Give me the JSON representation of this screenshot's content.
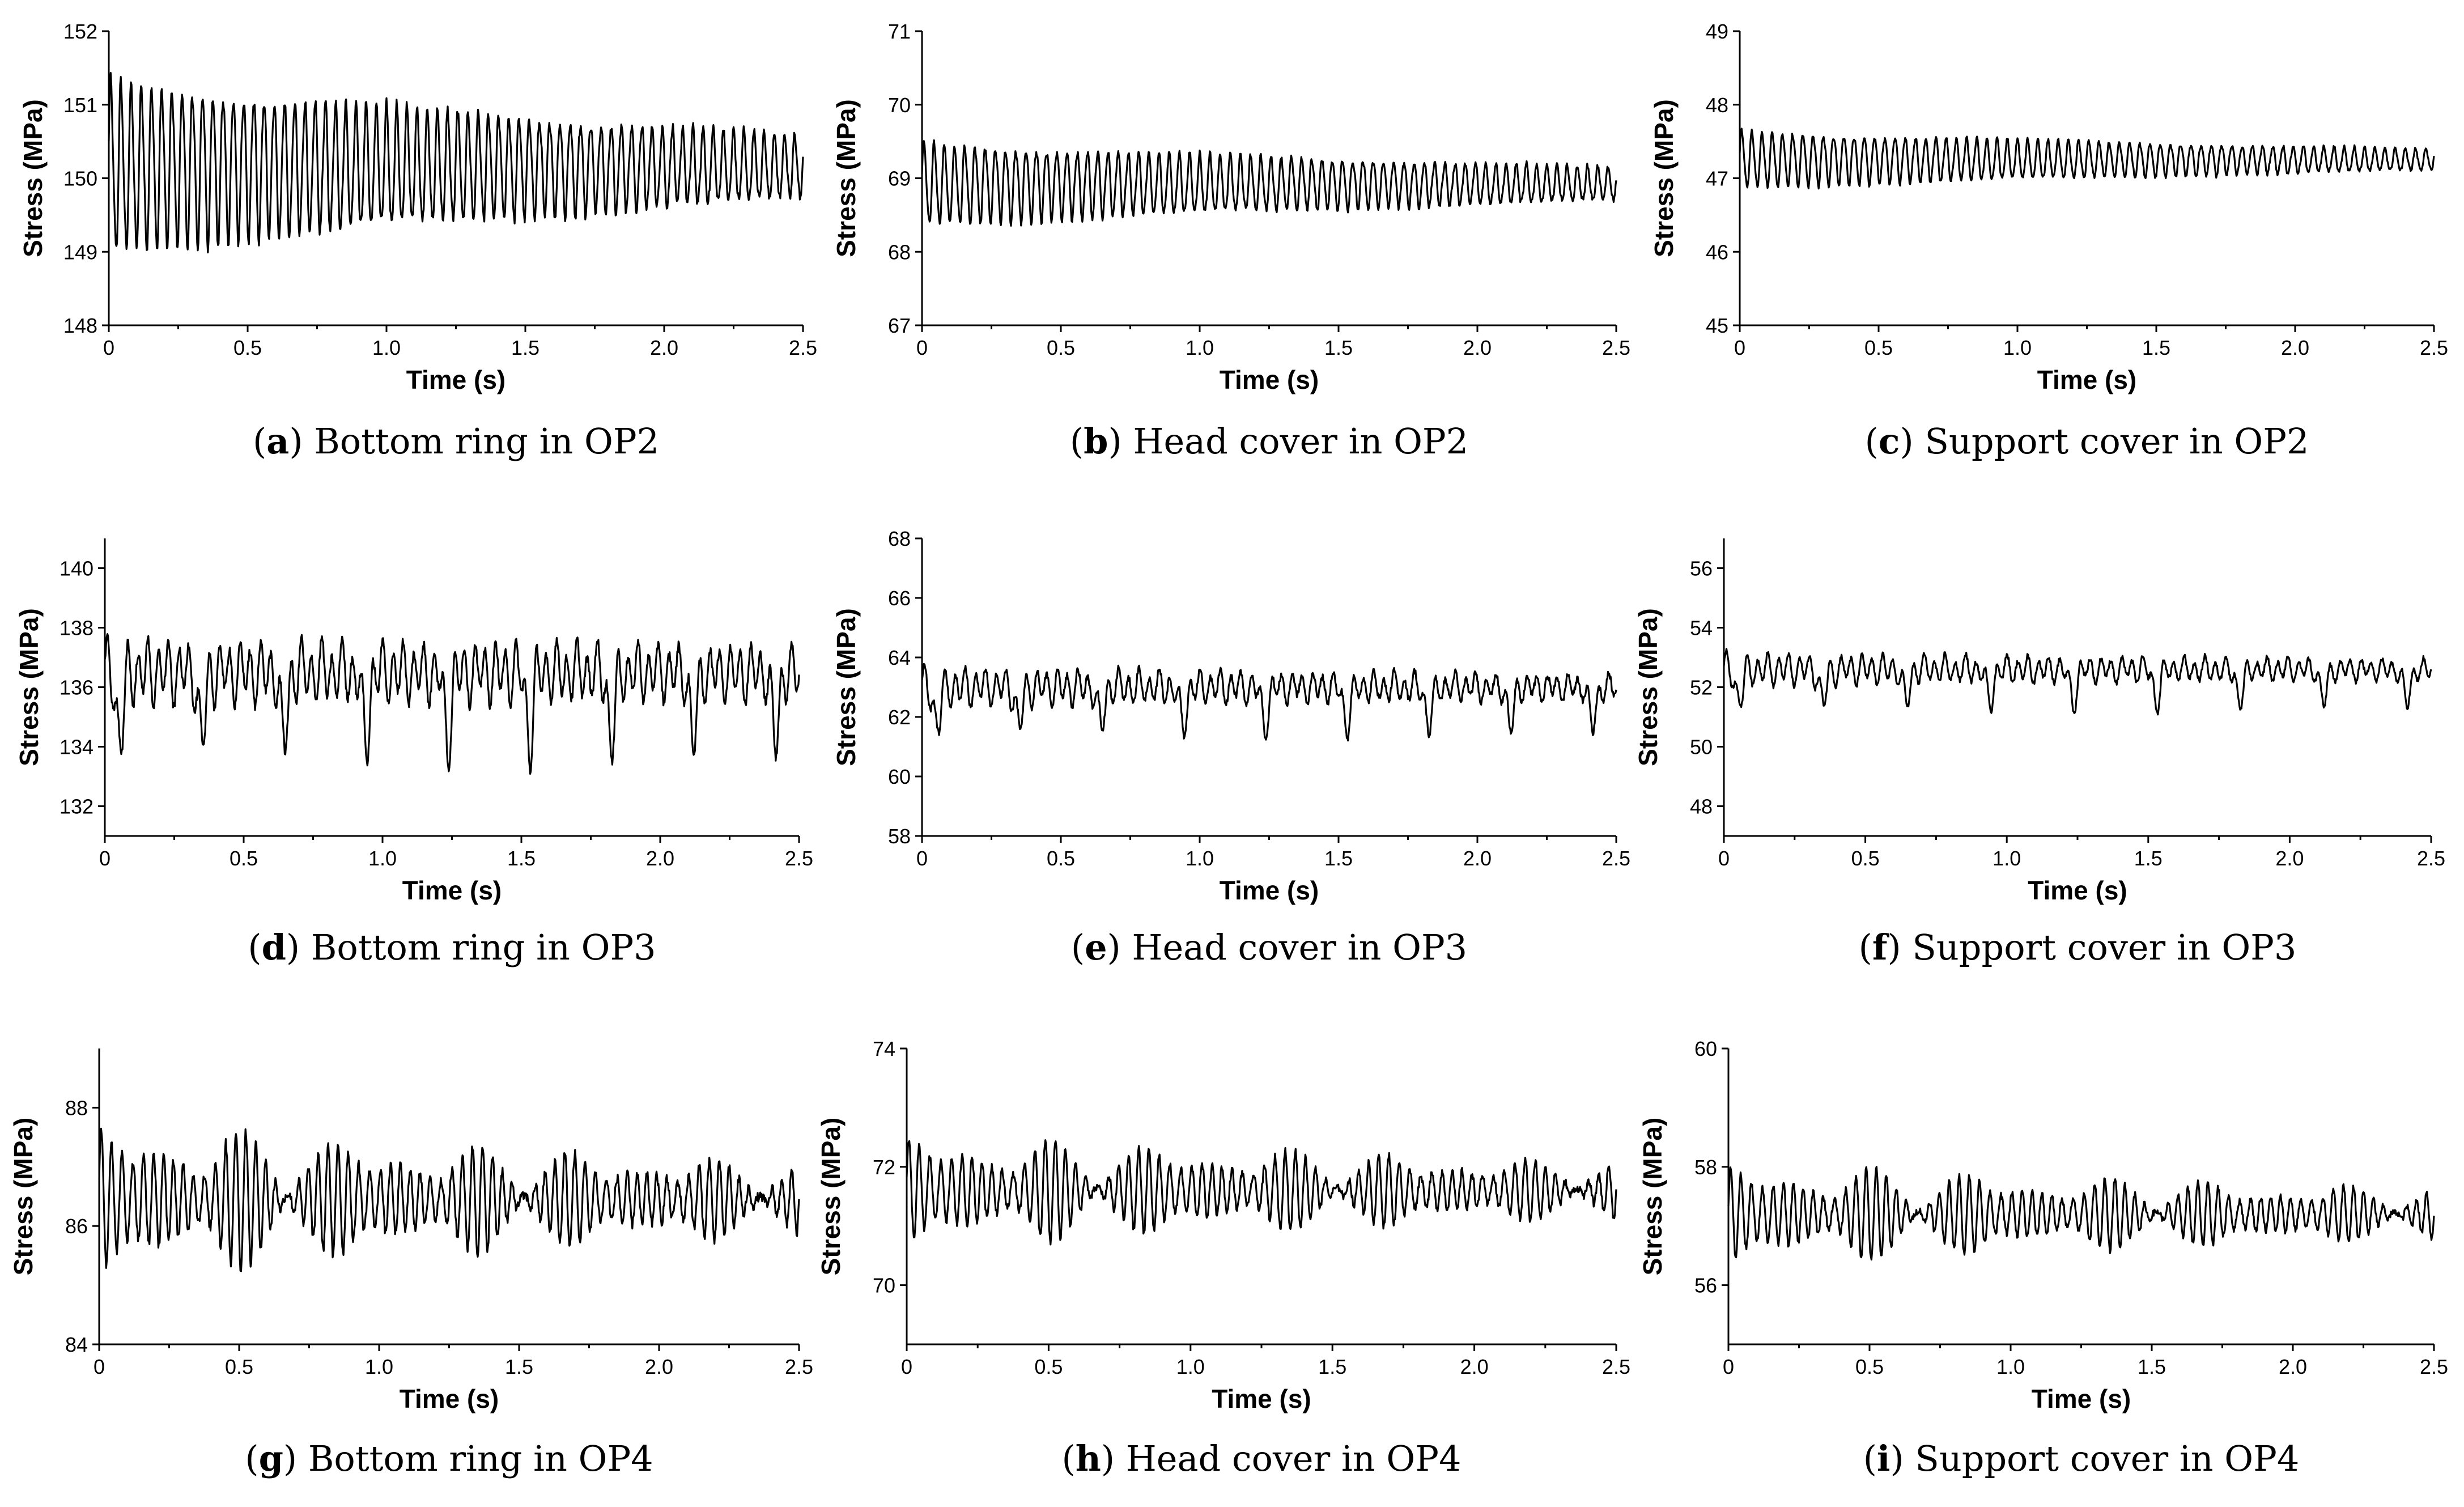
{
  "figure": {
    "x_label": "Time (s)",
    "y_label": "Stress (MPa)",
    "x_ticks": [
      "0",
      "0.5",
      "1.0",
      "1.5",
      "2.0",
      "2.5"
    ]
  },
  "chart_data": [
    {
      "id": "a",
      "type": "line",
      "caption_letter": "a",
      "caption_text": "Bottom ring in OP2",
      "xlim": [
        0,
        2.5
      ],
      "ylim": [
        148,
        152
      ],
      "y_ticks": [
        "148",
        "149",
        "150",
        "151",
        "152"
      ],
      "xlabel": "Time (s)",
      "ylabel": "Stress (MPa)",
      "signal": {
        "pattern": "decaying",
        "mean": 150.15,
        "amplitude_start": 1.15,
        "amplitude_end": 0.42,
        "cycles": 68,
        "noise": 0.05
      }
    },
    {
      "id": "b",
      "type": "line",
      "caption_letter": "b",
      "caption_text": "Head cover in OP2",
      "xlim": [
        0,
        2.5
      ],
      "ylim": [
        67,
        71
      ],
      "y_ticks": [
        "67",
        "68",
        "69",
        "70",
        "71"
      ],
      "xlabel": "Time (s)",
      "ylabel": "Stress (MPa)",
      "signal": {
        "pattern": "decaying",
        "mean": 68.92,
        "amplitude_start": 0.55,
        "amplitude_end": 0.22,
        "cycles": 68,
        "noise": 0.03
      }
    },
    {
      "id": "c",
      "type": "line",
      "caption_letter": "c",
      "caption_text": "Support cover in OP2",
      "xlim": [
        0,
        2.5
      ],
      "ylim": [
        45,
        49
      ],
      "y_ticks": [
        "45",
        "46",
        "47",
        "48",
        "49"
      ],
      "xlabel": "Time (s)",
      "ylabel": "Stress (MPa)",
      "signal": {
        "pattern": "decaying",
        "mean": 47.25,
        "amplitude_start": 0.38,
        "amplitude_end": 0.14,
        "cycles": 68,
        "noise": 0.02
      }
    },
    {
      "id": "d",
      "type": "line",
      "caption_letter": "d",
      "caption_text": "Bottom ring in OP3",
      "xlim": [
        0,
        2.5
      ],
      "ylim": [
        131,
        141
      ],
      "y_ticks": [
        "132",
        "134",
        "136",
        "138",
        "140"
      ],
      "xlabel": "Time (s)",
      "ylabel": "Stress (MPa)",
      "signal": {
        "pattern": "dips",
        "mean": 136.5,
        "amplitude_start": 0.9,
        "amplitude_end": 0.75,
        "cycles": 68,
        "noise": 0.15,
        "dip_depth": 2.4,
        "dip_period": 0.295
      }
    },
    {
      "id": "e",
      "type": "line",
      "caption_letter": "e",
      "caption_text": "Head cover in OP3",
      "xlim": [
        0,
        2.5
      ],
      "ylim": [
        58,
        68
      ],
      "y_ticks": [
        "58",
        "60",
        "62",
        "64",
        "66",
        "68"
      ],
      "xlabel": "Time (s)",
      "ylabel": "Stress (MPa)",
      "signal": {
        "pattern": "dips",
        "mean": 63.0,
        "amplitude_start": 0.55,
        "amplitude_end": 0.35,
        "cycles": 68,
        "noise": 0.1,
        "dip_depth": 1.3,
        "dip_period": 0.295
      }
    },
    {
      "id": "f",
      "type": "line",
      "caption_letter": "f",
      "caption_text": "Support cover in OP3",
      "xlim": [
        0,
        2.5
      ],
      "ylim": [
        47,
        57
      ],
      "y_ticks": [
        "48",
        "50",
        "52",
        "54",
        "56"
      ],
      "xlabel": "Time (s)",
      "ylabel": "Stress (MPa)",
      "signal": {
        "pattern": "dips",
        "mean": 52.6,
        "amplitude_start": 0.45,
        "amplitude_end": 0.28,
        "cycles": 68,
        "noise": 0.08,
        "dip_depth": 1.1,
        "dip_period": 0.295
      }
    },
    {
      "id": "g",
      "type": "line",
      "caption_letter": "g",
      "caption_text": "Bottom ring in OP4",
      "xlim": [
        0,
        2.5
      ],
      "ylim": [
        84,
        89
      ],
      "y_ticks": [
        "84",
        "86",
        "88"
      ],
      "xlabel": "Time (s)",
      "ylabel": "Stress (MPa)",
      "signal": {
        "pattern": "beats",
        "mean": 86.45,
        "amplitude_start": 0.75,
        "amplitude_end": 0.35,
        "cycles": 68,
        "noise": 0.08
      }
    },
    {
      "id": "h",
      "type": "line",
      "caption_letter": "h",
      "caption_text": "Head cover in OP4",
      "xlim": [
        0,
        2.5
      ],
      "ylim": [
        69,
        74
      ],
      "y_ticks": [
        "70",
        "72",
        "74"
      ],
      "xlabel": "Time (s)",
      "ylabel": "Stress (MPa)",
      "signal": {
        "pattern": "beats",
        "mean": 71.6,
        "amplitude_start": 0.55,
        "amplitude_end": 0.28,
        "cycles": 68,
        "noise": 0.06
      }
    },
    {
      "id": "i",
      "type": "line",
      "caption_letter": "i",
      "caption_text": "Support cover in OP4",
      "xlim": [
        0,
        2.5
      ],
      "ylim": [
        55,
        60
      ],
      "y_ticks": [
        "56",
        "58",
        "60"
      ],
      "xlabel": "Time (s)",
      "ylabel": "Stress (MPa)",
      "signal": {
        "pattern": "beats",
        "mean": 57.2,
        "amplitude_start": 0.5,
        "amplitude_end": 0.25,
        "cycles": 68,
        "noise": 0.05
      }
    }
  ]
}
